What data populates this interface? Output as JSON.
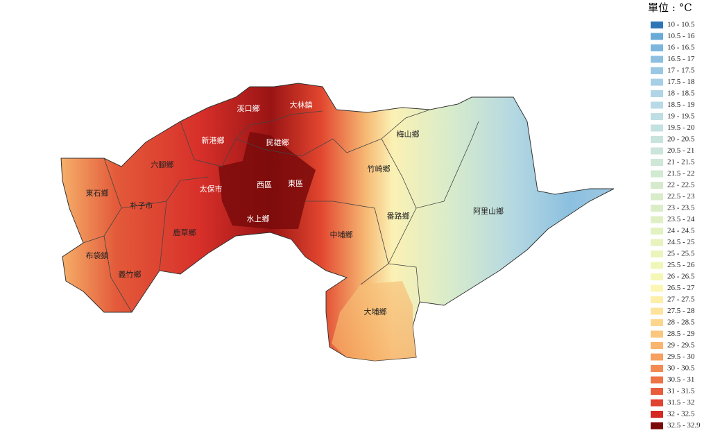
{
  "legend": {
    "title": "單位 : °C",
    "items": [
      {
        "label": "10 - 10.5",
        "color": "#2e75b6"
      },
      {
        "label": "10.5 - 16",
        "color": "#6aaad6"
      },
      {
        "label": "16 - 16.5",
        "color": "#7db6dc"
      },
      {
        "label": "16.5 - 17",
        "color": "#8dc0e0"
      },
      {
        "label": "17 - 17.5",
        "color": "#9ac8e3"
      },
      {
        "label": "17.5 - 18",
        "color": "#a6cfe6"
      },
      {
        "label": "18 - 18.5",
        "color": "#b0d5e7"
      },
      {
        "label": "18.5 - 19",
        "color": "#b8dae6"
      },
      {
        "label": "19 - 19.5",
        "color": "#bfdee4"
      },
      {
        "label": "19.5 - 20",
        "color": "#c4e1e1"
      },
      {
        "label": "20 - 20.5",
        "color": "#c8e3de"
      },
      {
        "label": "20.5 - 21",
        "color": "#cce5da"
      },
      {
        "label": "21 - 21.5",
        "color": "#cfe7d6"
      },
      {
        "label": "21.5 - 22",
        "color": "#d2e9d2"
      },
      {
        "label": "22 - 22.5",
        "color": "#d5eacd"
      },
      {
        "label": "22.5 - 23",
        "color": "#d8ecc9"
      },
      {
        "label": "23 - 23.5",
        "color": "#dbedc6"
      },
      {
        "label": "23.5 - 24",
        "color": "#def0c3"
      },
      {
        "label": "24 - 24.5",
        "color": "#e2f2c0"
      },
      {
        "label": "24.5 - 25",
        "color": "#e6f3bd"
      },
      {
        "label": "25 - 25.5",
        "color": "#ebf5bb"
      },
      {
        "label": "25.5 - 26",
        "color": "#f0f6b8"
      },
      {
        "label": "26 - 26.5",
        "color": "#f5f7b6"
      },
      {
        "label": "26.5 - 27",
        "color": "#fbf6b4"
      },
      {
        "label": "27 - 27.5",
        "color": "#fdeea8"
      },
      {
        "label": "27.5 - 28",
        "color": "#fde39c"
      },
      {
        "label": "28 - 28.5",
        "color": "#fcd68c"
      },
      {
        "label": "28.5 - 29",
        "color": "#fbc67d"
      },
      {
        "label": "29 - 29.5",
        "color": "#f9b46e"
      },
      {
        "label": "29.5 - 30",
        "color": "#f7a060"
      },
      {
        "label": "30 - 30.5",
        "color": "#f38a52"
      },
      {
        "label": "30.5 - 31",
        "color": "#ee7446"
      },
      {
        "label": "31 - 31.5",
        "color": "#e85d3b"
      },
      {
        "label": "31.5 - 32",
        "color": "#e14331"
      },
      {
        "label": "32 - 32.5",
        "color": "#d42a22"
      },
      {
        "label": "32.5 - 32.9",
        "color": "#7a0a0a"
      }
    ]
  },
  "map": {
    "labels": [
      "東石鄉",
      "朴子市",
      "六腳鄉",
      "新港鄉",
      "溪口鄉",
      "大林鎮",
      "民雄鄉",
      "太保市",
      "西區",
      "東區",
      "水上鄉",
      "鹿草鄉",
      "布袋鎮",
      "義竹鄉",
      "梅山鄉",
      "竹崎鄉",
      "番路鄉",
      "中埔鄉",
      "阿里山鄉",
      "大埔鄉"
    ]
  }
}
